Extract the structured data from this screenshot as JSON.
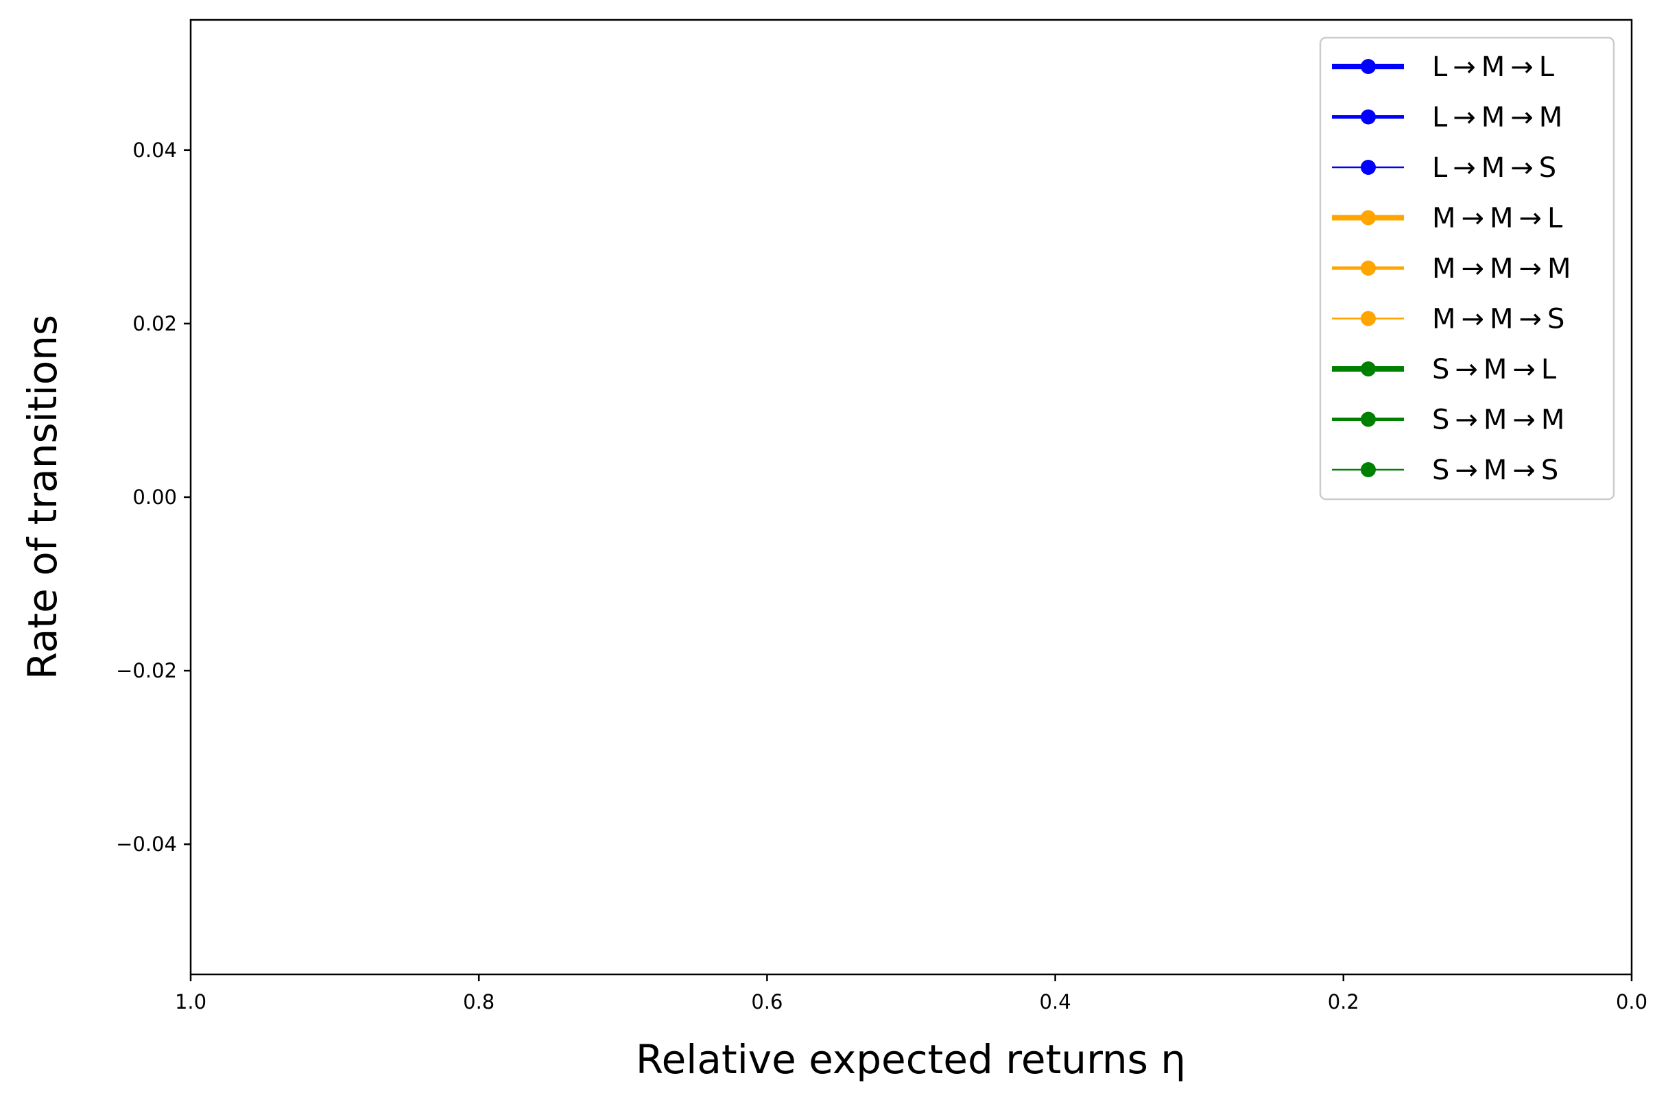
{
  "chart_data": {
    "type": "line",
    "title": "",
    "xlabel": "Relative expected returns η",
    "ylabel": "Rate of transitions",
    "xlim": [
      1.0,
      0.0
    ],
    "ylim": [
      -0.055,
      0.055
    ],
    "x_inverted": true,
    "grid": false,
    "legend_position": "top-right",
    "x_ticks": [
      {
        "value": 1.0,
        "label": "1.0"
      },
      {
        "value": 0.8,
        "label": "0.8"
      },
      {
        "value": 0.6,
        "label": "0.6"
      },
      {
        "value": 0.4,
        "label": "0.4"
      },
      {
        "value": 0.2,
        "label": "0.2"
      },
      {
        "value": 0.0,
        "label": "0.0"
      }
    ],
    "y_ticks": [
      {
        "value": 0.04,
        "label": "0.04"
      },
      {
        "value": 0.02,
        "label": "0.02"
      },
      {
        "value": 0.0,
        "label": "0.00"
      },
      {
        "value": -0.02,
        "label": "−0.02"
      },
      {
        "value": -0.04,
        "label": "−0.04"
      }
    ],
    "series": [
      {
        "name": "L → M → L",
        "color": "#0000ff",
        "line_weight": "thick",
        "marker": "circle",
        "x": [],
        "y": []
      },
      {
        "name": "L → M → M",
        "color": "#0000ff",
        "line_weight": "medium",
        "marker": "circle",
        "x": [],
        "y": []
      },
      {
        "name": "L → M → S",
        "color": "#0000ff",
        "line_weight": "thin",
        "marker": "circle",
        "x": [],
        "y": []
      },
      {
        "name": "M → M → L",
        "color": "#ffa500",
        "line_weight": "thick",
        "marker": "circle",
        "x": [],
        "y": []
      },
      {
        "name": "M → M → M",
        "color": "#ffa500",
        "line_weight": "medium",
        "marker": "circle",
        "x": [],
        "y": []
      },
      {
        "name": "M → M → S",
        "color": "#ffa500",
        "line_weight": "thin",
        "marker": "circle",
        "x": [],
        "y": []
      },
      {
        "name": "S → M → L",
        "color": "#008000",
        "line_weight": "thick",
        "marker": "circle",
        "x": [],
        "y": []
      },
      {
        "name": "S → M → M",
        "color": "#008000",
        "line_weight": "medium",
        "marker": "circle",
        "x": [],
        "y": []
      },
      {
        "name": "S → M → S",
        "color": "#008000",
        "line_weight": "thin",
        "marker": "circle",
        "x": [],
        "y": []
      }
    ]
  }
}
